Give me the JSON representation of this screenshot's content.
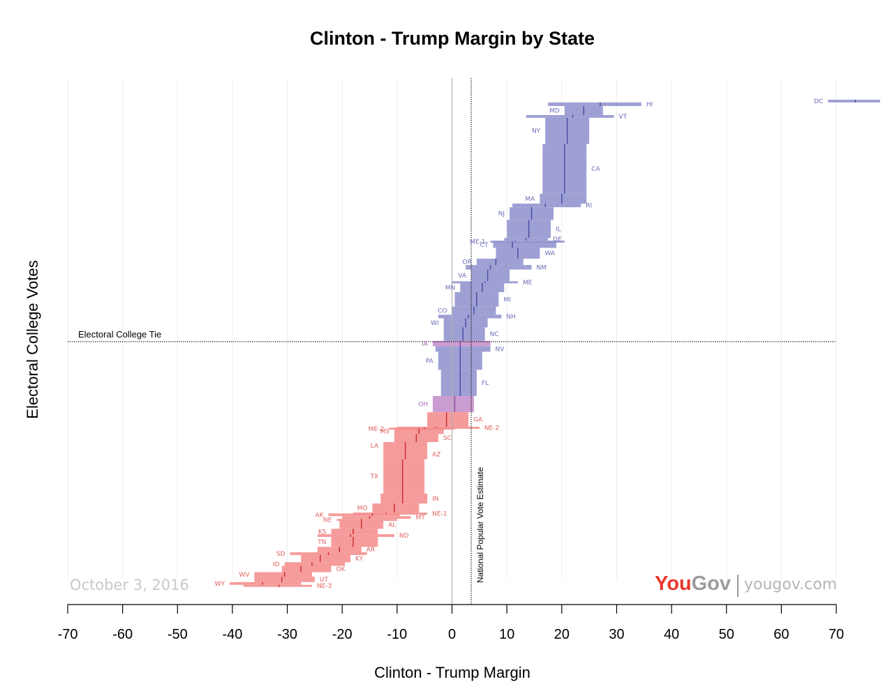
{
  "chart_data": {
    "type": "bar",
    "title": "Clinton - Trump Margin by State",
    "xlabel": "Clinton - Trump Margin",
    "ylabel": "Electoral College Votes",
    "xlim": [
      -70,
      70
    ],
    "x_ticks": [
      "-70",
      "-60",
      "-50",
      "-40",
      "-30",
      "-20",
      "-10",
      "0",
      "10",
      "20",
      "30",
      "40",
      "50",
      "60",
      "70"
    ],
    "ylim": [
      0,
      538
    ],
    "grid": "vertical",
    "reference_lines": {
      "tie_label": "Electoral College Tie",
      "tie_value": 269,
      "popular_vote_label": "National Popular Vote Estimate",
      "popular_vote_value": 3.5
    },
    "date": "October 3, 2016",
    "brand": {
      "you": "You",
      "gov": "Gov",
      "url": "yougov.com"
    },
    "colors": {
      "clinton": "#8d8fcc",
      "clinton_median": "#4a4ea6",
      "trump": "#f58a8a",
      "trump_median": "#cc2f2f",
      "tossup": "#c28bc9",
      "label_clinton": "#6a6cb8",
      "label_trump": "#e06060",
      "label_tossup": "#a669b0"
    },
    "states": [
      {
        "state": "DC",
        "ev": 3,
        "margin": 73.5,
        "low": 68.5,
        "high": 78.0,
        "side": "left"
      },
      {
        "state": "HI",
        "ev": 4,
        "margin": 27.0,
        "low": 17.5,
        "high": 34.5,
        "side": "right"
      },
      {
        "state": "MD",
        "ev": 10,
        "margin": 24.0,
        "low": 20.5,
        "high": 27.5,
        "side": "left"
      },
      {
        "state": "VT",
        "ev": 3,
        "margin": 22.0,
        "low": 13.5,
        "high": 29.5,
        "side": "right"
      },
      {
        "state": "NY",
        "ev": 29,
        "margin": 21.0,
        "low": 17.0,
        "high": 25.0,
        "side": "left"
      },
      {
        "state": "CA",
        "ev": 55,
        "margin": 20.5,
        "low": 16.5,
        "high": 24.5,
        "side": "right"
      },
      {
        "state": "MA",
        "ev": 11,
        "margin": 20.0,
        "low": 16.0,
        "high": 24.5,
        "side": "left"
      },
      {
        "state": "RI",
        "ev": 4,
        "margin": 17.0,
        "low": 11.0,
        "high": 23.5,
        "side": "right"
      },
      {
        "state": "NJ",
        "ev": 14,
        "margin": 14.5,
        "low": 10.5,
        "high": 18.5,
        "side": "left"
      },
      {
        "state": "IL",
        "ev": 20,
        "margin": 14.0,
        "low": 10.0,
        "high": 18.0,
        "side": "right"
      },
      {
        "state": "DE",
        "ev": 3,
        "margin": 13.5,
        "low": 9.5,
        "high": 17.5,
        "side": "right"
      },
      {
        "state": "ME-1",
        "ev": 1,
        "margin": 11.5,
        "low": 7.0,
        "high": 20.5,
        "side": "left"
      },
      {
        "state": "CT",
        "ev": 7,
        "margin": 11.0,
        "low": 7.5,
        "high": 19.0,
        "side": "left"
      },
      {
        "state": "WA",
        "ev": 12,
        "margin": 12.0,
        "low": 8.0,
        "high": 16.0,
        "side": "right"
      },
      {
        "state": "OR",
        "ev": 7,
        "margin": 8.0,
        "low": 4.5,
        "high": 13.0,
        "side": "left"
      },
      {
        "state": "NM",
        "ev": 5,
        "margin": 7.0,
        "low": 2.5,
        "high": 14.5,
        "side": "right"
      },
      {
        "state": "VA",
        "ev": 13,
        "margin": 6.5,
        "low": 3.5,
        "high": 10.5,
        "side": "left"
      },
      {
        "state": "ME",
        "ev": 2,
        "margin": 6.0,
        "low": 0.0,
        "high": 12.0,
        "side": "right"
      },
      {
        "state": "MN",
        "ev": 10,
        "margin": 5.5,
        "low": 1.5,
        "high": 9.5,
        "side": "left"
      },
      {
        "state": "MI",
        "ev": 16,
        "margin": 4.5,
        "low": 0.5,
        "high": 8.5,
        "side": "right"
      },
      {
        "state": "CO",
        "ev": 9,
        "margin": 4.0,
        "low": 0.0,
        "high": 8.0,
        "side": "left"
      },
      {
        "state": "NH",
        "ev": 4,
        "margin": 3.0,
        "low": -2.5,
        "high": 9.0,
        "side": "right"
      },
      {
        "state": "WI",
        "ev": 10,
        "margin": 2.5,
        "low": -1.5,
        "high": 6.5,
        "side": "left"
      },
      {
        "state": "NC",
        "ev": 15,
        "margin": 2.0,
        "low": -1.5,
        "high": 6.0,
        "side": "right"
      },
      {
        "state": "IA",
        "ev": 6,
        "margin": 1.5,
        "low": -3.5,
        "high": 7.0,
        "side": "left"
      },
      {
        "state": "NV",
        "ev": 6,
        "margin": 1.5,
        "low": -3.0,
        "high": 7.0,
        "side": "right"
      },
      {
        "state": "PA",
        "ev": 20,
        "margin": 1.5,
        "low": -2.5,
        "high": 5.5,
        "side": "left"
      },
      {
        "state": "FL",
        "ev": 29,
        "margin": 1.5,
        "low": -2.0,
        "high": 4.5,
        "side": "right"
      },
      {
        "state": "OH",
        "ev": 18,
        "margin": 0.5,
        "low": -3.5,
        "high": 4.0,
        "side": "left"
      },
      {
        "state": "GA",
        "ev": 16,
        "margin": -1.0,
        "low": -4.5,
        "high": 3.0,
        "side": "right"
      },
      {
        "state": "NE-2",
        "ev": 1,
        "margin": -3.0,
        "low": -10.0,
        "high": 5.0,
        "side": "right"
      },
      {
        "state": "ME-2",
        "ev": 1,
        "margin": -5.0,
        "low": -11.5,
        "high": 0.5,
        "side": "left"
      },
      {
        "state": "MS",
        "ev": 6,
        "margin": -6.0,
        "low": -10.5,
        "high": -1.5,
        "side": "left"
      },
      {
        "state": "SC",
        "ev": 9,
        "margin": -6.5,
        "low": -10.5,
        "high": -2.5,
        "side": "right"
      },
      {
        "state": "LA",
        "ev": 8,
        "margin": -8.5,
        "low": -12.5,
        "high": -4.5,
        "side": "left"
      },
      {
        "state": "AZ",
        "ev": 11,
        "margin": -8.5,
        "low": -12.5,
        "high": -4.5,
        "side": "right"
      },
      {
        "state": "TX",
        "ev": 38,
        "margin": -9.0,
        "low": -12.5,
        "high": -5.0,
        "side": "left"
      },
      {
        "state": "IN",
        "ev": 11,
        "margin": -9.0,
        "low": -13.0,
        "high": -4.5,
        "side": "right"
      },
      {
        "state": "MO",
        "ev": 10,
        "margin": -10.5,
        "low": -14.5,
        "high": -6.0,
        "side": "left"
      },
      {
        "state": "NE-1",
        "ev": 1,
        "margin": -12.0,
        "low": -18.0,
        "high": -4.5,
        "side": "right"
      },
      {
        "state": "AK",
        "ev": 3,
        "margin": -14.5,
        "low": -22.5,
        "high": -9.5,
        "side": "left"
      },
      {
        "state": "MT",
        "ev": 3,
        "margin": -15.0,
        "low": -20.0,
        "high": -7.5,
        "side": "right"
      },
      {
        "state": "NE",
        "ev": 2,
        "margin": -16.5,
        "low": -21.0,
        "high": -10.0,
        "side": "left"
      },
      {
        "state": "AL",
        "ev": 9,
        "margin": -16.5,
        "low": -20.5,
        "high": -12.5,
        "side": "right"
      },
      {
        "state": "KS",
        "ev": 6,
        "margin": -18.0,
        "low": -22.0,
        "high": -13.5,
        "side": "left"
      },
      {
        "state": "ND",
        "ev": 3,
        "margin": -18.5,
        "low": -24.5,
        "high": -10.5,
        "side": "right"
      },
      {
        "state": "TN",
        "ev": 11,
        "margin": -18.0,
        "low": -22.0,
        "high": -13.5,
        "side": "left"
      },
      {
        "state": "AR",
        "ev": 6,
        "margin": -20.5,
        "low": -24.5,
        "high": -16.5,
        "side": "right"
      },
      {
        "state": "SD",
        "ev": 3,
        "margin": -22.5,
        "low": -29.5,
        "high": -15.5,
        "side": "left"
      },
      {
        "state": "KY",
        "ev": 8,
        "margin": -24.0,
        "low": -27.5,
        "high": -18.5,
        "side": "right"
      },
      {
        "state": "ID",
        "ev": 4,
        "margin": -25.5,
        "low": -30.5,
        "high": -19.5,
        "side": "left"
      },
      {
        "state": "OK",
        "ev": 7,
        "margin": -27.5,
        "low": -31.0,
        "high": -22.0,
        "side": "right"
      },
      {
        "state": "WV",
        "ev": 5,
        "margin": -30.5,
        "low": -36.0,
        "high": -25.5,
        "side": "left"
      },
      {
        "state": "UT",
        "ev": 6,
        "margin": -31.0,
        "low": -36.0,
        "high": -25.0,
        "side": "right"
      },
      {
        "state": "WY",
        "ev": 3,
        "margin": -34.5,
        "low": -40.5,
        "high": -27.5,
        "side": "left"
      },
      {
        "state": "NE-3",
        "ev": 1,
        "margin": -31.5,
        "low": -38.0,
        "high": -25.5,
        "side": "right"
      }
    ]
  }
}
